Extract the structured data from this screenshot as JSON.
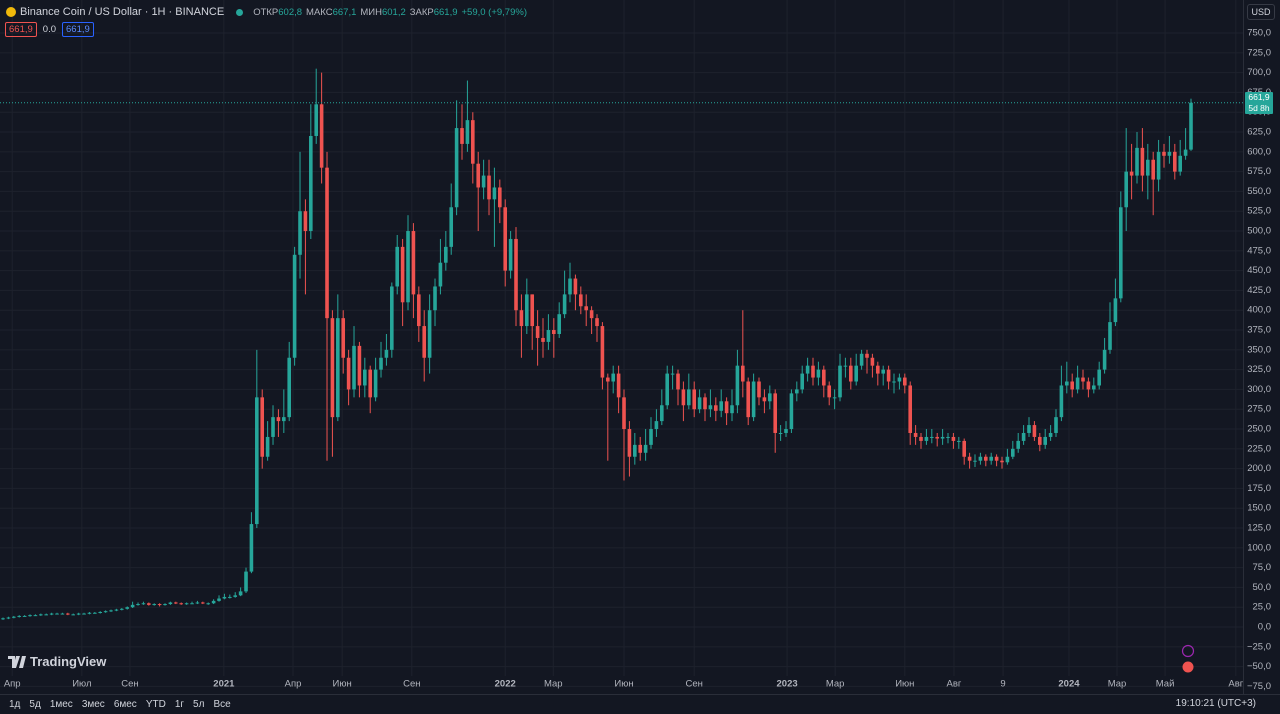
{
  "chart_data": {
    "type": "candlestick",
    "title": "Binance Coin / US Dollar · 1H · BINANCE",
    "legend": {
      "items": [
        {
          "label": "ОТКР",
          "value": "602,8"
        },
        {
          "label": "МАКС",
          "value": "667,1"
        },
        {
          "label": "МИН",
          "value": "601,2"
        },
        {
          "label": "ЗАКР",
          "value": "661,9"
        }
      ],
      "change": "+59,0 (+9,79%)"
    },
    "badges": [
      "661,9",
      "0.0",
      "661,9"
    ],
    "currency": "USD",
    "last_price": {
      "label": "661,9",
      "countdown": "5d 8h"
    },
    "colors": {
      "up": "#26a69a",
      "down": "#ef5350"
    },
    "grid": true,
    "xlim": [
      -0.56,
      229.63
    ],
    "xticks": [
      {
        "value": 1.7,
        "label": "Апр"
      },
      {
        "value": 14.6,
        "label": "Июл"
      },
      {
        "value": 23.5,
        "label": "Сен"
      },
      {
        "value": 40.9,
        "label": "2021"
      },
      {
        "value": 53.7,
        "label": "Апр"
      },
      {
        "value": 62.8,
        "label": "Июн"
      },
      {
        "value": 75.7,
        "label": "Сен"
      },
      {
        "value": 93,
        "label": "2022"
      },
      {
        "value": 101.9,
        "label": "Мар"
      },
      {
        "value": 115,
        "label": "Июн"
      },
      {
        "value": 128,
        "label": "Сен"
      },
      {
        "value": 145.2,
        "label": "2023"
      },
      {
        "value": 154.1,
        "label": "Мар"
      },
      {
        "value": 167,
        "label": "Июн"
      },
      {
        "value": 176.1,
        "label": "Авг"
      },
      {
        "value": 185.2,
        "label": "9"
      },
      {
        "value": 197.4,
        "label": "2024"
      },
      {
        "value": 206.3,
        "label": "Мар"
      },
      {
        "value": 215.2,
        "label": "Май"
      },
      {
        "value": 228.3,
        "label": "Авг"
      }
    ],
    "ylim": [
      -83.3,
      791.7
    ],
    "yticks": [
      {
        "value": -75,
        "label": "−75,0"
      },
      {
        "value": -50,
        "label": "−50,0"
      },
      {
        "value": -25,
        "label": "−25,0"
      },
      {
        "value": 0,
        "label": "0,0"
      },
      {
        "value": 25,
        "label": "25,0"
      },
      {
        "value": 50,
        "label": "50,0"
      },
      {
        "value": 75,
        "label": "75,0"
      },
      {
        "value": 100,
        "label": "100,0"
      },
      {
        "value": 125,
        "label": "125,0"
      },
      {
        "value": 150,
        "label": "150,0"
      },
      {
        "value": 175,
        "label": "175,0"
      },
      {
        "value": 200,
        "label": "200,0"
      },
      {
        "value": 225,
        "label": "225,0"
      },
      {
        "value": 250,
        "label": "250,0"
      },
      {
        "value": 275,
        "label": "275,0"
      },
      {
        "value": 300,
        "label": "300,0"
      },
      {
        "value": 325,
        "label": "325,0"
      },
      {
        "value": 350,
        "label": "350,0"
      },
      {
        "value": 375,
        "label": "375,0"
      },
      {
        "value": 400,
        "label": "400,0"
      },
      {
        "value": 425,
        "label": "425,0"
      },
      {
        "value": 450,
        "label": "450,0"
      },
      {
        "value": 475,
        "label": "475,0"
      },
      {
        "value": 500,
        "label": "500,0"
      },
      {
        "value": 525,
        "label": "525,0"
      },
      {
        "value": 550,
        "label": "550,0"
      },
      {
        "value": 575,
        "label": "575,0"
      },
      {
        "value": 600,
        "label": "600,0"
      },
      {
        "value": 625,
        "label": "625,0"
      },
      {
        "value": 650,
        "label": "650,0"
      },
      {
        "value": 675,
        "label": "675,0"
      },
      {
        "value": 700,
        "label": "700,0"
      },
      {
        "value": 725,
        "label": "725,0"
      },
      {
        "value": 750,
        "label": "750,0"
      }
    ],
    "open": [
      10,
      11,
      12,
      13,
      14,
      14,
      15,
      15,
      16,
      16,
      17,
      17,
      17,
      16,
      16,
      17,
      17,
      18,
      18,
      19,
      20,
      21,
      22,
      23,
      25,
      28,
      29,
      30,
      28,
      29,
      28,
      29,
      31,
      30,
      29,
      30,
      30,
      31,
      30,
      30,
      33,
      36,
      38,
      38,
      40,
      45,
      70,
      130,
      290,
      215,
      240,
      265,
      260,
      265,
      340,
      470,
      525,
      500,
      620,
      660,
      580,
      390,
      265,
      390,
      340,
      300,
      355,
      305,
      325,
      290,
      325,
      340,
      350,
      430,
      480,
      410,
      500,
      420,
      380,
      340,
      400,
      430,
      460,
      480,
      530,
      630,
      610,
      640,
      585,
      555,
      570,
      540,
      555,
      530,
      450,
      490,
      400,
      380,
      420,
      380,
      365,
      360,
      375,
      370,
      395,
      420,
      440,
      420,
      405,
      400,
      390,
      380,
      315,
      310,
      320,
      290,
      250,
      215,
      230,
      220,
      230,
      250,
      260,
      280,
      320,
      320,
      300,
      280,
      300,
      275,
      290,
      275,
      280,
      273,
      285,
      270,
      280,
      330,
      310,
      265,
      310,
      290,
      285,
      295,
      245,
      245,
      250,
      295,
      300,
      320,
      330,
      315,
      325,
      305,
      290,
      290,
      330,
      330,
      310,
      330,
      345,
      340,
      330,
      320,
      325,
      310,
      310,
      315,
      305,
      245,
      240,
      235,
      240,
      240,
      238,
      240,
      240,
      235,
      235,
      215,
      210,
      210,
      215,
      210,
      215,
      210,
      208,
      215,
      225,
      235,
      245,
      255,
      240,
      230,
      240,
      245,
      265,
      305,
      310,
      300,
      315,
      310,
      300,
      305,
      325,
      350,
      385,
      415,
      530,
      575,
      570,
      605,
      570,
      590,
      565,
      600,
      595,
      600,
      575,
      595,
      602.8
    ],
    "high": [
      12,
      13,
      14,
      15,
      15,
      16,
      16,
      17,
      17,
      18,
      18,
      18,
      18,
      17,
      18,
      18,
      19,
      19,
      20,
      21,
      22,
      23,
      24,
      26,
      32,
      31,
      32,
      31,
      30,
      30,
      30,
      32,
      32,
      31,
      31,
      32,
      33,
      32,
      31,
      35,
      40,
      42,
      41,
      44,
      50,
      75,
      145,
      350,
      300,
      260,
      280,
      275,
      300,
      360,
      480,
      600,
      540,
      660,
      705,
      700,
      600,
      400,
      420,
      400,
      350,
      380,
      360,
      340,
      330,
      340,
      360,
      370,
      435,
      495,
      490,
      520,
      510,
      430,
      400,
      420,
      440,
      490,
      500,
      560,
      665,
      660,
      690,
      650,
      600,
      590,
      590,
      580,
      565,
      540,
      500,
      505,
      420,
      440,
      420,
      400,
      390,
      395,
      390,
      410,
      450,
      460,
      445,
      430,
      420,
      405,
      395,
      385,
      320,
      330,
      330,
      300,
      260,
      245,
      240,
      250,
      265,
      275,
      300,
      330,
      330,
      325,
      310,
      320,
      310,
      300,
      295,
      300,
      290,
      300,
      290,
      300,
      350,
      400,
      315,
      320,
      315,
      300,
      305,
      300,
      255,
      260,
      300,
      310,
      330,
      340,
      340,
      335,
      330,
      310,
      300,
      345,
      340,
      340,
      345,
      350,
      350,
      345,
      335,
      330,
      330,
      320,
      320,
      320,
      310,
      255,
      245,
      250,
      250,
      245,
      250,
      245,
      245,
      240,
      238,
      220,
      218,
      220,
      218,
      220,
      218,
      215,
      225,
      235,
      245,
      255,
      265,
      260,
      245,
      250,
      255,
      275,
      330,
      335,
      320,
      330,
      325,
      315,
      315,
      335,
      365,
      410,
      440,
      550,
      630,
      610,
      625,
      630,
      610,
      600,
      615,
      610,
      620,
      610,
      615,
      630,
      667.1
    ],
    "low": [
      9,
      10,
      11,
      12,
      13,
      13,
      14,
      14,
      15,
      15,
      16,
      16,
      15,
      15,
      15,
      16,
      16,
      17,
      17,
      18,
      19,
      20,
      21,
      22,
      24,
      27,
      28,
      27,
      27,
      26,
      27,
      28,
      29,
      28,
      28,
      29,
      29,
      29,
      28,
      29,
      32,
      35,
      36,
      37,
      39,
      43,
      68,
      125,
      200,
      210,
      230,
      240,
      245,
      260,
      330,
      440,
      420,
      490,
      610,
      560,
      210,
      215,
      260,
      320,
      280,
      290,
      290,
      290,
      270,
      285,
      315,
      330,
      340,
      420,
      380,
      400,
      390,
      360,
      310,
      320,
      380,
      420,
      450,
      470,
      520,
      590,
      600,
      560,
      500,
      540,
      520,
      480,
      510,
      430,
      440,
      380,
      340,
      370,
      350,
      330,
      340,
      350,
      340,
      365,
      390,
      410,
      400,
      395,
      380,
      370,
      360,
      300,
      210,
      295,
      270,
      185,
      190,
      205,
      210,
      210,
      225,
      240,
      255,
      275,
      300,
      280,
      260,
      275,
      265,
      270,
      260,
      265,
      260,
      265,
      255,
      260,
      270,
      290,
      255,
      260,
      280,
      270,
      275,
      220,
      235,
      240,
      245,
      285,
      295,
      310,
      305,
      305,
      290,
      280,
      275,
      285,
      315,
      300,
      305,
      325,
      320,
      315,
      305,
      305,
      300,
      295,
      300,
      295,
      230,
      230,
      225,
      230,
      232,
      228,
      230,
      232,
      225,
      225,
      205,
      200,
      202,
      205,
      203,
      205,
      203,
      200,
      205,
      212,
      220,
      230,
      240,
      235,
      222,
      225,
      235,
      240,
      260,
      295,
      290,
      295,
      300,
      290,
      295,
      300,
      320,
      345,
      380,
      410,
      500,
      540,
      560,
      550,
      540,
      520,
      550,
      580,
      585,
      565,
      570,
      590,
      601.2
    ],
    "close": [
      11,
      12,
      13,
      14,
      14,
      15,
      15,
      16,
      16,
      17,
      17,
      17,
      16,
      16,
      17,
      17,
      18,
      18,
      19,
      20,
      21,
      22,
      23,
      25,
      28,
      29,
      30,
      28,
      29,
      28,
      29,
      31,
      30,
      29,
      30,
      30,
      31,
      30,
      30,
      33,
      36,
      38,
      38,
      40,
      45,
      70,
      130,
      290,
      215,
      240,
      265,
      260,
      265,
      340,
      470,
      525,
      500,
      620,
      660,
      580,
      390,
      265,
      390,
      340,
      300,
      355,
      305,
      325,
      290,
      325,
      340,
      350,
      430,
      480,
      410,
      500,
      420,
      380,
      340,
      400,
      430,
      460,
      480,
      530,
      630,
      610,
      640,
      585,
      555,
      570,
      540,
      555,
      530,
      450,
      490,
      400,
      380,
      420,
      380,
      365,
      360,
      375,
      370,
      395,
      420,
      440,
      420,
      405,
      400,
      390,
      380,
      315,
      310,
      320,
      290,
      250,
      215,
      230,
      220,
      230,
      250,
      260,
      280,
      320,
      320,
      300,
      280,
      300,
      275,
      290,
      275,
      280,
      273,
      285,
      270,
      280,
      330,
      310,
      265,
      310,
      290,
      285,
      295,
      245,
      245,
      250,
      295,
      300,
      320,
      330,
      315,
      325,
      305,
      290,
      290,
      330,
      330,
      310,
      330,
      345,
      340,
      330,
      320,
      325,
      310,
      310,
      315,
      305,
      245,
      240,
      235,
      240,
      240,
      238,
      240,
      240,
      235,
      235,
      215,
      210,
      210,
      215,
      210,
      215,
      210,
      208,
      215,
      225,
      235,
      245,
      255,
      240,
      230,
      240,
      245,
      265,
      305,
      310,
      300,
      315,
      310,
      300,
      305,
      325,
      350,
      385,
      415,
      530,
      575,
      570,
      605,
      570,
      590,
      565,
      600,
      595,
      600,
      575,
      595,
      602.8,
      661.9
    ]
  },
  "branding": {
    "logo": "TradingView"
  },
  "toolbar": {
    "ranges": [
      "1д",
      "5д",
      "1мес",
      "3мес",
      "6мес",
      "YTD",
      "1г",
      "5л",
      "Все"
    ],
    "clock": "19:10:21 (UTC+3)"
  }
}
